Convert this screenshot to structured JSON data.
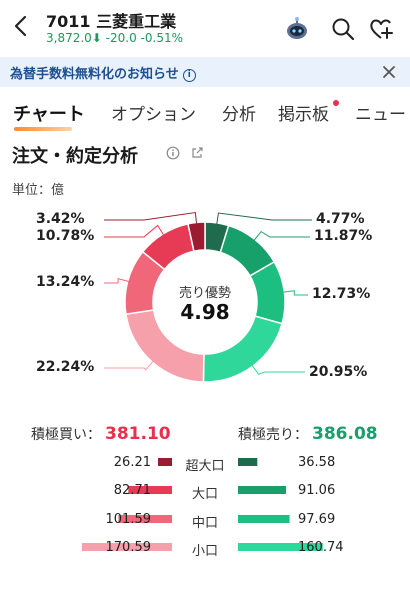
{
  "header": {
    "code_name": "7011 三菱重工業",
    "quote": "3,872.0⬇ -20.0 -0.51%"
  },
  "notice": {
    "text": "為替手数料無料化のお知らせ",
    "info_glyph": "i"
  },
  "tabs": [
    {
      "label": "チャート"
    },
    {
      "label": "オプション"
    },
    {
      "label": "分析"
    },
    {
      "label": "掲示板"
    },
    {
      "label": "ニュー"
    }
  ],
  "section": {
    "title": "注文・約定分析",
    "unit": "単位：億"
  },
  "center": {
    "label": "売り優勢",
    "value": "4.98"
  },
  "totals": {
    "buy_label": "積極買い：",
    "buy_value": "381.10",
    "sell_label": "積極売り：",
    "sell_value": "386.08"
  },
  "rows": [
    {
      "label": "超大口",
      "buy": "26.21",
      "sell": "36.58"
    },
    {
      "label": "大口",
      "buy": "82.71",
      "sell": "91.06"
    },
    {
      "label": "中口",
      "buy": "101.59",
      "sell": "97.69"
    },
    {
      "label": "小口",
      "buy": "170.59",
      "sell": "160.74"
    }
  ],
  "chart_data": {
    "type": "pie",
    "title": "",
    "slices": [
      {
        "value": 4.77,
        "side": "sell",
        "color": "#1f6b4e"
      },
      {
        "value": 11.87,
        "side": "sell",
        "color": "#17a06a"
      },
      {
        "value": 12.73,
        "side": "sell",
        "color": "#1dbf80"
      },
      {
        "value": 20.95,
        "side": "sell",
        "color": "#2fd89a"
      },
      {
        "value": 22.24,
        "side": "buy",
        "color": "#f5a0ab"
      },
      {
        "value": 13.24,
        "side": "buy",
        "color": "#f0677a"
      },
      {
        "value": 10.78,
        "side": "buy",
        "color": "#e63a55"
      },
      {
        "value": 3.42,
        "side": "buy",
        "color": "#9b1b30"
      }
    ],
    "labels": [
      "4.77%",
      "11.87%",
      "12.73%",
      "20.95%",
      "22.24%",
      "13.24%",
      "10.78%",
      "3.42%"
    ]
  },
  "colors": {
    "buy_red": "#e8304a",
    "sell_green": "#17a06a"
  }
}
